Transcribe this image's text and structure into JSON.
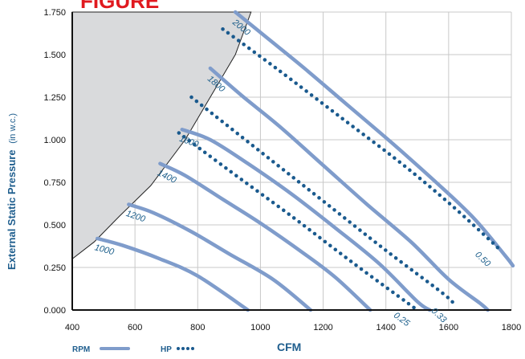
{
  "title_fragment": "FIGURE",
  "chart_data": {
    "type": "line",
    "xlabel": "CFM",
    "ylabel": "External Static Pressure",
    "ylabel_unit": "(in w.c.)",
    "xlim": [
      400,
      1800
    ],
    "ylim": [
      0,
      1.75
    ],
    "xticks": [
      {
        "value": 400,
        "label": "400"
      },
      {
        "value": 600,
        "label": "600"
      },
      {
        "value": 800,
        "label": "800"
      },
      {
        "value": 1000,
        "label": "1000"
      },
      {
        "value": 1200,
        "label": "1200"
      },
      {
        "value": 1400,
        "label": "1400"
      },
      {
        "value": 1600,
        "label": "1600"
      },
      {
        "value": 1800,
        "label": "1800"
      }
    ],
    "yticks": [
      {
        "value": 0,
        "label": "0.000"
      },
      {
        "value": 0.25,
        "label": "0.250"
      },
      {
        "value": 0.5,
        "label": "0.500"
      },
      {
        "value": 0.75,
        "label": "0.750"
      },
      {
        "value": 1.0,
        "label": "1.000"
      },
      {
        "value": 1.25,
        "label": "1.250"
      },
      {
        "value": 1.5,
        "label": "1.500"
      },
      {
        "value": 1.75,
        "label": "1.750"
      }
    ],
    "grid": true,
    "shaded_region_boundary": [
      [
        400,
        0.3
      ],
      [
        470,
        0.4
      ],
      [
        550,
        0.55
      ],
      [
        650,
        0.73
      ],
      [
        760,
        1.0
      ],
      [
        840,
        1.25
      ],
      [
        920,
        1.5
      ],
      [
        970,
        1.75
      ]
    ],
    "rpm_series": [
      {
        "name": "1000",
        "points": [
          [
            480,
            0.42
          ],
          [
            560,
            0.38
          ],
          [
            680,
            0.3
          ],
          [
            800,
            0.2
          ],
          [
            960,
            0.0
          ]
        ]
      },
      {
        "name": "1200",
        "points": [
          [
            580,
            0.62
          ],
          [
            660,
            0.57
          ],
          [
            780,
            0.46
          ],
          [
            900,
            0.33
          ],
          [
            1040,
            0.18
          ],
          [
            1160,
            0.0
          ]
        ]
      },
      {
        "name": "1400",
        "points": [
          [
            680,
            0.86
          ],
          [
            760,
            0.79
          ],
          [
            880,
            0.65
          ],
          [
            1000,
            0.51
          ],
          [
            1140,
            0.33
          ],
          [
            1240,
            0.19
          ],
          [
            1350,
            0.0
          ]
        ]
      },
      {
        "name": "1600",
        "points": [
          [
            750,
            1.06
          ],
          [
            840,
            1.0
          ],
          [
            960,
            0.86
          ],
          [
            1100,
            0.68
          ],
          [
            1240,
            0.48
          ],
          [
            1380,
            0.27
          ],
          [
            1500,
            0.05
          ],
          [
            1540,
            0.0
          ]
        ]
      },
      {
        "name": "1800",
        "points": [
          [
            840,
            1.42
          ],
          [
            940,
            1.26
          ],
          [
            1060,
            1.08
          ],
          [
            1200,
            0.85
          ],
          [
            1340,
            0.62
          ],
          [
            1480,
            0.4
          ],
          [
            1600,
            0.18
          ],
          [
            1700,
            0.04
          ],
          [
            1725,
            0.0
          ]
        ]
      },
      {
        "name": "2000",
        "points": [
          [
            920,
            1.75
          ],
          [
            1020,
            1.6
          ],
          [
            1140,
            1.42
          ],
          [
            1280,
            1.2
          ],
          [
            1420,
            0.98
          ],
          [
            1560,
            0.75
          ],
          [
            1680,
            0.54
          ],
          [
            1780,
            0.32
          ],
          [
            1805,
            0.26
          ]
        ]
      }
    ],
    "hp_series": [
      {
        "name": "0.25",
        "points": [
          [
            740,
            1.04
          ],
          [
            900,
            0.82
          ],
          [
            1100,
            0.55
          ],
          [
            1300,
            0.27
          ],
          [
            1500,
            0.0
          ]
        ]
      },
      {
        "name": "0.33",
        "points": [
          [
            780,
            1.25
          ],
          [
            1000,
            0.93
          ],
          [
            1200,
            0.64
          ],
          [
            1400,
            0.35
          ],
          [
            1580,
            0.1
          ],
          [
            1620,
            0.03
          ]
        ]
      },
      {
        "name": "0.50",
        "points": [
          [
            880,
            1.65
          ],
          [
            1050,
            1.42
          ],
          [
            1250,
            1.14
          ],
          [
            1450,
            0.86
          ],
          [
            1600,
            0.63
          ],
          [
            1720,
            0.43
          ],
          [
            1760,
            0.36
          ]
        ]
      }
    ],
    "legend": {
      "rpm_label": "RPM",
      "hp_label": "HP",
      "position": "bottom-left"
    }
  },
  "colors": {
    "rpm_line": "#7f9ccb",
    "hp_dots": "#1a5a8e",
    "shade": "#d9dadc",
    "grid": "#c8c8c8",
    "label": "#1f5e8e",
    "title": "#e0191f"
  }
}
